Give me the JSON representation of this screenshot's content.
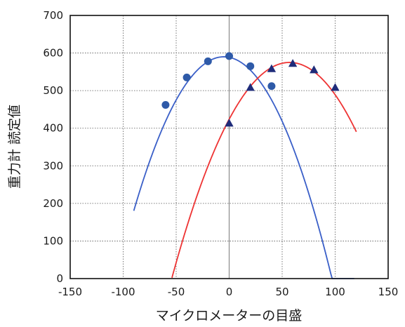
{
  "chart_data": {
    "type": "scatter",
    "title": "",
    "xlabel": "マイクロメーターの目盛",
    "ylabel": "重力計 読定値",
    "xlim": [
      -150,
      150
    ],
    "ylim": [
      0,
      700
    ],
    "xticks": [
      -150,
      -100,
      -50,
      0,
      50,
      100,
      150
    ],
    "yticks": [
      0,
      100,
      200,
      300,
      400,
      500,
      600,
      700
    ],
    "grid": true,
    "legend": "none",
    "series": [
      {
        "marker": "circle",
        "color": "#2e5aa8",
        "points": [
          {
            "x": -60,
            "y": 462
          },
          {
            "x": -40,
            "y": 535
          },
          {
            "x": -20,
            "y": 578
          },
          {
            "x": 0,
            "y": 592
          },
          {
            "x": 20,
            "y": 565
          },
          {
            "x": 40,
            "y": 512
          }
        ],
        "curve": {
          "color": "#3a5fc8",
          "x_range": [
            -90,
            118
          ],
          "vertex": [
            -5,
            590
          ],
          "a": -0.0567
        }
      },
      {
        "marker": "triangle",
        "color": "#1f2c7a",
        "points": [
          {
            "x": 0,
            "y": 413
          },
          {
            "x": 20,
            "y": 508
          },
          {
            "x": 40,
            "y": 558
          },
          {
            "x": 60,
            "y": 572
          },
          {
            "x": 80,
            "y": 555
          },
          {
            "x": 100,
            "y": 508
          }
        ],
        "curve": {
          "color": "#ee3333",
          "x_range": [
            -54,
            120
          ],
          "vertex": [
            57,
            575
          ],
          "a": -0.0465
        }
      }
    ]
  }
}
